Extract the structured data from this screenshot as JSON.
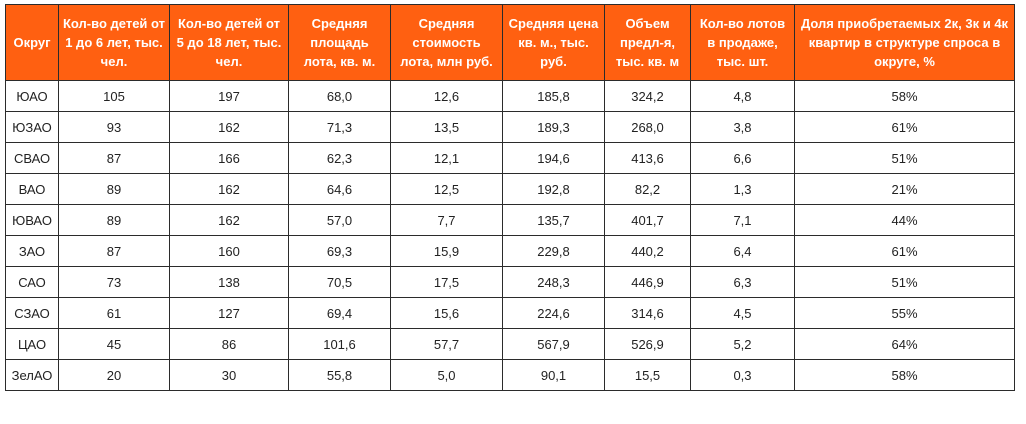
{
  "table": {
    "headers": [
      "Округ",
      "Кол-во детей от 1 до 6 лет, тыс. чел.",
      "Кол-во детей от 5 до 18 лет, тыс. чел.",
      "Средняя площадь лота, кв. м.",
      "Средняя стоимость лота, млн руб.",
      "Средняя цена кв. м., тыс. руб.",
      "Объем предл-я, тыс. кв. м",
      "Кол-во лотов в продаже, тыс. шт.",
      "Доля приобретаемых 2к, 3к и 4к квартир в структуре спроса в округе, %"
    ],
    "rows": [
      [
        "ЮАО",
        "105",
        "197",
        "68,0",
        "12,6",
        "185,8",
        "324,2",
        "4,8",
        "58%"
      ],
      [
        "ЮЗАО",
        "93",
        "162",
        "71,3",
        "13,5",
        "189,3",
        "268,0",
        "3,8",
        "61%"
      ],
      [
        "СВАО",
        "87",
        "166",
        "62,3",
        "12,1",
        "194,6",
        "413,6",
        "6,6",
        "51%"
      ],
      [
        "ВАО",
        "89",
        "162",
        "64,6",
        "12,5",
        "192,8",
        "82,2",
        "1,3",
        "21%"
      ],
      [
        "ЮВАО",
        "89",
        "162",
        "57,0",
        "7,7",
        "135,7",
        "401,7",
        "7,1",
        "44%"
      ],
      [
        "ЗАО",
        "87",
        "160",
        "69,3",
        "15,9",
        "229,8",
        "440,2",
        "6,4",
        "61%"
      ],
      [
        "САО",
        "73",
        "138",
        "70,5",
        "17,5",
        "248,3",
        "446,9",
        "6,3",
        "51%"
      ],
      [
        "СЗАО",
        "61",
        "127",
        "69,4",
        "15,6",
        "224,6",
        "314,6",
        "4,5",
        "55%"
      ],
      [
        "ЦАО",
        "45",
        "86",
        "101,6",
        "57,7",
        "567,9",
        "526,9",
        "5,2",
        "64%"
      ],
      [
        "ЗелАО",
        "20",
        "30",
        "55,8",
        "5,0",
        "90,1",
        "15,5",
        "0,3",
        "58%"
      ]
    ]
  },
  "colors": {
    "header_background": "#ff6011",
    "header_text": "#ffffff",
    "border": "#2b2b2b",
    "cell_text": "#222222"
  }
}
